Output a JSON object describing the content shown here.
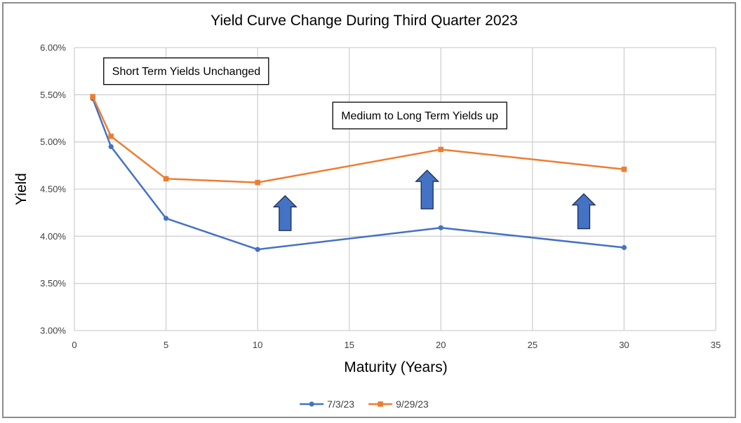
{
  "chart_data": {
    "type": "line",
    "title": "Yield Curve Change During Third Quarter 2023",
    "xlabel": "Maturity (Years)",
    "ylabel": "Yield",
    "xlim": [
      0,
      35
    ],
    "ylim": [
      0.03,
      0.06
    ],
    "x_ticks": [
      0,
      5,
      10,
      15,
      20,
      25,
      30,
      35
    ],
    "x_tick_labels": [
      "0",
      "5",
      "10",
      "15",
      "20",
      "25",
      "30",
      "35"
    ],
    "y_ticks": [
      0.03,
      0.035,
      0.04,
      0.045,
      0.05,
      0.055,
      0.06
    ],
    "y_tick_labels": [
      "3.00%",
      "3.50%",
      "4.00%",
      "4.50%",
      "5.00%",
      "5.50%",
      "6.00%"
    ],
    "grid": true,
    "legend_position": "bottom",
    "series": [
      {
        "name": "7/3/23",
        "color": "#4472c4",
        "marker": "circle",
        "x": [
          1,
          2,
          5,
          10,
          20,
          30
        ],
        "y": [
          0.0546,
          0.0495,
          0.0419,
          0.0386,
          0.0409,
          0.0388
        ]
      },
      {
        "name": "9/29/23",
        "color": "#ed7d31",
        "marker": "square",
        "x": [
          1,
          2,
          5,
          10,
          20,
          30
        ],
        "y": [
          0.0548,
          0.0506,
          0.0461,
          0.0457,
          0.0492,
          0.0471
        ]
      }
    ],
    "annotations": [
      {
        "text": "Short Term Yields Unchanged",
        "x": 1.6,
        "y": 0.0575
      },
      {
        "text": "Medium to Long Term Yields up",
        "x": 14.1,
        "y": 0.0528
      }
    ],
    "arrows": [
      {
        "x": 11.5,
        "y_base": 0.0406,
        "y_tip": 0.0443,
        "color": "#4472c4",
        "direction": "up"
      },
      {
        "x": 19.25,
        "y_base": 0.0429,
        "y_tip": 0.047,
        "color": "#4472c4",
        "direction": "up"
      },
      {
        "x": 27.8,
        "y_base": 0.0408,
        "y_tip": 0.0445,
        "color": "#4472c4",
        "direction": "up"
      }
    ]
  }
}
